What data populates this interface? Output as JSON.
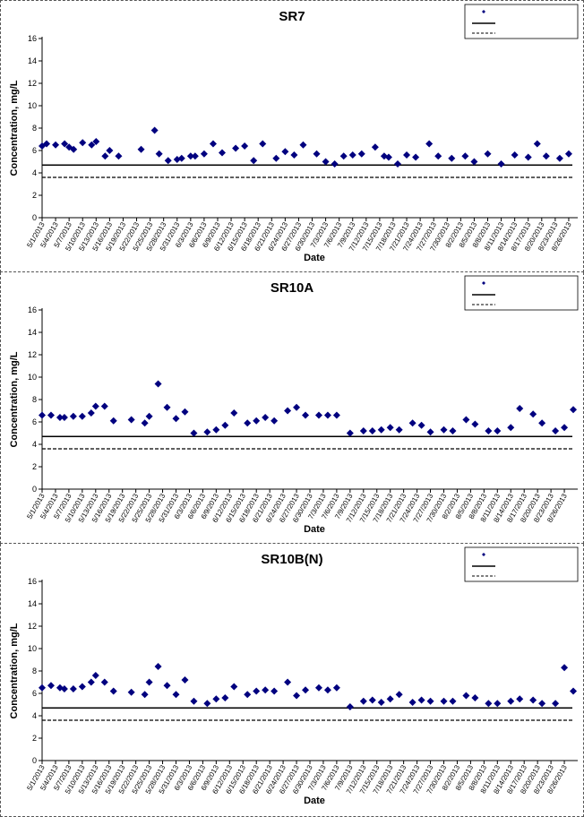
{
  "colors": {
    "marker": "#00007f",
    "background": "#ffffff",
    "line": "#000000"
  },
  "dates": [
    "5/1/2013",
    "5/4/2013",
    "5/7/2013",
    "5/10/2013",
    "5/13/2013",
    "5/16/2013",
    "5/19/2013",
    "5/22/2013",
    "5/25/2013",
    "5/28/2013",
    "5/31/2013",
    "6/3/2013",
    "6/6/2013",
    "6/9/2013",
    "6/12/2013",
    "6/15/2013",
    "6/18/2013",
    "6/21/2013",
    "6/24/2013",
    "6/27/2013",
    "6/30/2013",
    "7/3/2013",
    "7/6/2013",
    "7/9/2013",
    "7/12/2013",
    "7/15/2013",
    "7/18/2013",
    "7/21/2013",
    "7/24/2013",
    "7/27/2013",
    "7/30/2013",
    "8/2/2013",
    "8/5/2013",
    "8/8/2013",
    "8/11/2013",
    "8/14/2013",
    "8/17/2013",
    "8/20/2013",
    "8/23/2013",
    "8/26/2013"
  ],
  "chart_data": [
    {
      "type": "scatter",
      "title": "SR7",
      "xlabel": "Date",
      "ylabel": "Concentration, mg/L",
      "ylim": [
        0,
        16
      ],
      "yticks": [
        0,
        2,
        4,
        6,
        8,
        10,
        12,
        14,
        16
      ],
      "xlim": [
        "5/1/2013",
        "8/28/2013"
      ],
      "legend_position": "top-right",
      "legend_entries": [
        "",
        "",
        ""
      ],
      "reference_lines": [
        {
          "style": "solid",
          "y": 4.7
        },
        {
          "style": "dashed",
          "y": 3.6
        }
      ],
      "series": [
        {
          "x": [
            "5/1/2013",
            "5/2/2013",
            "5/4/2013",
            "5/6/2013",
            "5/7/2013",
            "5/8/2013",
            "5/10/2013",
            "5/12/2013",
            "5/13/2013",
            "5/15/2013",
            "5/16/2013",
            "5/18/2013",
            "5/23/2013",
            "5/26/2013",
            "5/27/2013",
            "5/29/2013",
            "5/31/2013",
            "6/1/2013",
            "6/3/2013",
            "6/4/2013",
            "6/6/2013",
            "6/8/2013",
            "6/10/2013",
            "6/13/2013",
            "6/15/2013",
            "6/17/2013",
            "6/19/2013",
            "6/22/2013",
            "6/24/2013",
            "6/26/2013",
            "6/28/2013",
            "7/1/2013",
            "7/3/2013",
            "7/5/2013",
            "7/7/2013",
            "7/9/2013",
            "7/11/2013",
            "7/14/2013",
            "7/16/2013",
            "7/17/2013",
            "7/19/2013",
            "7/21/2013",
            "7/23/2013",
            "7/26/2013",
            "7/28/2013",
            "7/31/2013",
            "8/3/2013",
            "8/5/2013",
            "8/8/2013",
            "8/11/2013",
            "8/14/2013",
            "8/17/2013",
            "8/19/2013",
            "8/21/2013",
            "8/24/2013",
            "8/26/2013"
          ],
          "y": [
            6.4,
            6.6,
            6.5,
            6.6,
            6.3,
            6.1,
            6.7,
            6.5,
            6.8,
            5.5,
            6.0,
            5.5,
            6.1,
            7.8,
            5.7,
            5.1,
            5.2,
            5.3,
            5.5,
            5.5,
            5.7,
            6.6,
            5.8,
            6.2,
            6.4,
            5.1,
            6.6,
            5.3,
            5.9,
            5.6,
            6.5,
            5.7,
            5.0,
            4.8,
            5.5,
            5.6,
            5.7,
            6.3,
            5.5,
            5.4,
            4.8,
            5.6,
            5.4,
            6.6,
            5.5,
            5.3,
            5.5,
            5.0,
            5.7,
            4.8,
            5.6,
            5.4,
            6.6,
            5.5,
            5.3,
            5.7
          ]
        }
      ]
    },
    {
      "type": "scatter",
      "title": "SR10A",
      "xlabel": "Date",
      "ylabel": "Concentration, mg/L",
      "ylim": [
        0,
        16
      ],
      "yticks": [
        0,
        2,
        4,
        6,
        8,
        10,
        12,
        14,
        16
      ],
      "xlim": [
        "5/1/2013",
        "8/29/2013"
      ],
      "legend_position": "top-right",
      "legend_entries": [
        "",
        "",
        ""
      ],
      "reference_lines": [
        {
          "style": "solid",
          "y": 4.7
        },
        {
          "style": "dashed",
          "y": 3.6
        }
      ],
      "series": [
        {
          "x": [
            "5/1/2013",
            "5/3/2013",
            "5/5/2013",
            "5/6/2013",
            "5/8/2013",
            "5/10/2013",
            "5/12/2013",
            "5/13/2013",
            "5/15/2013",
            "5/17/2013",
            "5/21/2013",
            "5/24/2013",
            "5/25/2013",
            "5/27/2013",
            "5/29/2013",
            "5/31/2013",
            "6/2/2013",
            "6/4/2013",
            "6/7/2013",
            "6/9/2013",
            "6/11/2013",
            "6/13/2013",
            "6/16/2013",
            "6/18/2013",
            "6/20/2013",
            "6/22/2013",
            "6/25/2013",
            "6/27/2013",
            "6/29/2013",
            "7/2/2013",
            "7/4/2013",
            "7/6/2013",
            "7/9/2013",
            "7/12/2013",
            "7/14/2013",
            "7/16/2013",
            "7/18/2013",
            "7/20/2013",
            "7/23/2013",
            "7/25/2013",
            "7/27/2013",
            "7/30/2013",
            "8/1/2013",
            "8/4/2013",
            "8/6/2013",
            "8/9/2013",
            "8/11/2013",
            "8/14/2013",
            "8/16/2013",
            "8/19/2013",
            "8/21/2013",
            "8/24/2013",
            "8/26/2013",
            "8/28/2013"
          ],
          "y": [
            6.6,
            6.6,
            6.4,
            6.4,
            6.5,
            6.5,
            6.8,
            7.4,
            7.4,
            6.1,
            6.2,
            5.9,
            6.5,
            9.4,
            7.3,
            6.3,
            6.9,
            5.0,
            5.1,
            5.3,
            5.7,
            6.8,
            5.9,
            6.1,
            6.4,
            6.1,
            7.0,
            7.3,
            6.6,
            6.6,
            6.6,
            6.6,
            5.0,
            5.2,
            5.2,
            5.3,
            5.5,
            5.3,
            5.9,
            5.7,
            5.1,
            5.3,
            5.2,
            6.2,
            5.8,
            5.2,
            5.2,
            5.5,
            7.2,
            6.7,
            5.9,
            5.2,
            5.5,
            7.1
          ]
        }
      ]
    },
    {
      "type": "scatter",
      "title": "SR10B(N)",
      "xlabel": "Date",
      "ylabel": "Concentration, mg/L",
      "ylim": [
        0,
        16
      ],
      "yticks": [
        0,
        2,
        4,
        6,
        8,
        10,
        12,
        14,
        16
      ],
      "xlim": [
        "5/1/2013",
        "8/29/2013"
      ],
      "legend_position": "top-right",
      "legend_entries": [
        "",
        "",
        ""
      ],
      "reference_lines": [
        {
          "style": "solid",
          "y": 4.7
        },
        {
          "style": "dashed",
          "y": 3.6
        }
      ],
      "series": [
        {
          "x": [
            "5/1/2013",
            "5/3/2013",
            "5/5/2013",
            "5/6/2013",
            "5/8/2013",
            "5/10/2013",
            "5/12/2013",
            "5/13/2013",
            "5/15/2013",
            "5/17/2013",
            "5/21/2013",
            "5/24/2013",
            "5/25/2013",
            "5/27/2013",
            "5/29/2013",
            "5/31/2013",
            "6/2/2013",
            "6/4/2013",
            "6/7/2013",
            "6/9/2013",
            "6/11/2013",
            "6/13/2013",
            "6/16/2013",
            "6/18/2013",
            "6/20/2013",
            "6/22/2013",
            "6/25/2013",
            "6/27/2013",
            "6/29/2013",
            "7/2/2013",
            "7/4/2013",
            "7/6/2013",
            "7/9/2013",
            "7/12/2013",
            "7/14/2013",
            "7/16/2013",
            "7/18/2013",
            "7/20/2013",
            "7/23/2013",
            "7/25/2013",
            "7/27/2013",
            "7/30/2013",
            "8/1/2013",
            "8/4/2013",
            "8/6/2013",
            "8/9/2013",
            "8/11/2013",
            "8/14/2013",
            "8/16/2013",
            "8/19/2013",
            "8/21/2013",
            "8/24/2013",
            "8/26/2013",
            "8/28/2013"
          ],
          "y": [
            6.5,
            6.7,
            6.5,
            6.4,
            6.4,
            6.6,
            7.0,
            7.6,
            7.0,
            6.2,
            6.1,
            5.9,
            7.0,
            8.4,
            6.7,
            5.9,
            7.2,
            5.3,
            5.1,
            5.5,
            5.6,
            6.6,
            5.9,
            6.2,
            6.3,
            6.2,
            7.0,
            5.8,
            6.3,
            6.5,
            6.3,
            6.5,
            4.8,
            5.3,
            5.4,
            5.2,
            5.5,
            5.9,
            5.2,
            5.4,
            5.3,
            5.3,
            5.3,
            5.8,
            5.6,
            5.1,
            5.1,
            5.3,
            5.5,
            5.4,
            5.1,
            5.1,
            8.3,
            6.2
          ]
        }
      ]
    }
  ]
}
